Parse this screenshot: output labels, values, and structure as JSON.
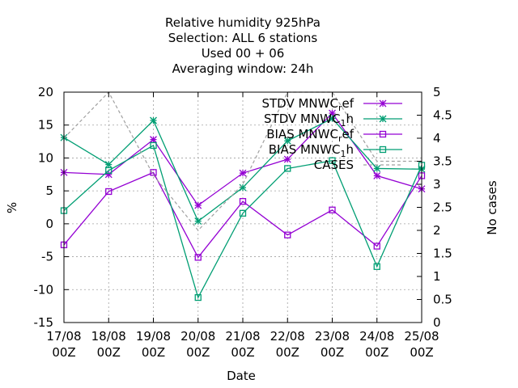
{
  "chart_data": {
    "type": "line",
    "title_lines": [
      "Relative humidity 925hPa",
      "Selection: ALL      6 stations",
      "Used  00 + 06",
      "Averaging window: 24h"
    ],
    "xlabel": "Date",
    "ylabel": "%",
    "y2label": "No cases",
    "categories": [
      "17/08\n00Z",
      "18/08\n00Z",
      "19/08\n00Z",
      "20/08\n00Z",
      "21/08\n00Z",
      "22/08\n00Z",
      "23/08\n00Z",
      "24/08\n00Z",
      "25/08\n00Z"
    ],
    "ylim": [
      -15,
      20
    ],
    "yticks": [
      -15,
      -10,
      -5,
      0,
      5,
      10,
      15,
      20
    ],
    "y2lim": [
      0,
      5
    ],
    "y2ticks": [
      "0",
      "0.5",
      "1",
      "1.5",
      "2",
      "2.5",
      "3",
      "3.5",
      "4",
      "4.5",
      "5"
    ],
    "grid": true,
    "legend_position": "top-right",
    "series": [
      {
        "name": "STDV MNWC_ref",
        "label_main": "STDV MNWC",
        "label_sub": "r",
        "label_tail": "ef",
        "color": "#9400d3",
        "marker": "star",
        "axis": "y",
        "values": [
          7.8,
          7.5,
          12.8,
          2.8,
          7.7,
          9.8,
          16.8,
          7.3,
          5.3
        ]
      },
      {
        "name": "STDV MNWC_1h",
        "label_main": "STDV MNWC",
        "label_sub": "1",
        "label_tail": "h",
        "color": "#009e73",
        "marker": "star",
        "axis": "y",
        "values": [
          13.1,
          9.0,
          15.7,
          0.4,
          5.5,
          12.6,
          16.0,
          8.4,
          8.3
        ]
      },
      {
        "name": "BIAS MNWC_ref",
        "label_main": "BIAS MNWC",
        "label_sub": "r",
        "label_tail": "ef",
        "color": "#9400d3",
        "marker": "square",
        "axis": "y",
        "values": [
          -3.2,
          4.9,
          7.8,
          -5.1,
          3.4,
          -1.7,
          2.1,
          -3.4,
          7.3
        ]
      },
      {
        "name": "BIAS MNWC_1h",
        "label_main": "BIAS MNWC",
        "label_sub": "1",
        "label_tail": "h",
        "color": "#009e73",
        "marker": "square",
        "axis": "y",
        "values": [
          2.0,
          8.1,
          11.9,
          -11.2,
          1.6,
          8.4,
          9.6,
          -6.5,
          8.9
        ]
      },
      {
        "name": "CASES",
        "label_main": "CASES",
        "label_sub": "",
        "label_tail": "",
        "color": "#a0a0a0",
        "marker": "none",
        "axis": "y2",
        "dashed": true,
        "values": [
          4.0,
          5.0,
          3.2,
          2.0,
          3.0,
          5.0,
          5.0,
          3.5,
          3.5
        ]
      }
    ]
  }
}
